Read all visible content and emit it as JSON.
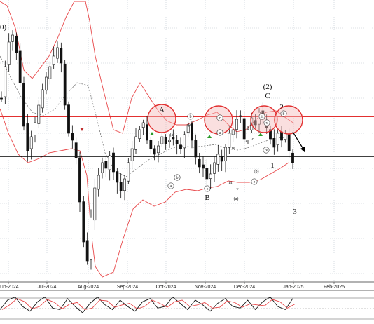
{
  "chart_data": {
    "type": "candlestick",
    "x_ticks": [
      "Jun-2024",
      "Jul-2024",
      "Aug-2024",
      "Sep-2024",
      "Oct-2024",
      "Nov-2024",
      "Dec-2024",
      "Jan-2025",
      "Feb-2025"
    ],
    "colors": {
      "bollinger": "#e8484a",
      "resistance": "#e23030",
      "support": "#000000",
      "circle_fill": "#f4b8b8",
      "circle_stroke": "#e23030",
      "candle": "#111111",
      "buy_arrow": "#2a9a2a",
      "sell_arrow": "#c03030",
      "osc_main": "#111111",
      "osc_signal": "#e8484a"
    },
    "horizontal_lines": [
      {
        "name": "resistance",
        "color": "#e23030"
      },
      {
        "name": "support",
        "color": "#000000"
      }
    ],
    "wave_labels": {
      "major": [
        "A",
        "B",
        "C",
        "(2)",
        "2",
        "1",
        "3"
      ],
      "minor_circled": [
        "b",
        "c",
        "a",
        "b",
        "c",
        "a",
        "e",
        "iii",
        "iv",
        "v",
        "b"
      ],
      "minor_plain": [
        "(a)",
        "(c)",
        "a",
        "c",
        "iv",
        "v",
        "(a)",
        "iii",
        "(b)"
      ]
    },
    "price_path": [
      140,
      95,
      60,
      50,
      75,
      118,
      180,
      215,
      195,
      175,
      150,
      128,
      110,
      95,
      80,
      68,
      90,
      150,
      190,
      200,
      225,
      288,
      345,
      372,
      310,
      268,
      250,
      232,
      240,
      222,
      245,
      260,
      272,
      255,
      232,
      212,
      195,
      185,
      175,
      200,
      212,
      220,
      208,
      195,
      205,
      200,
      198,
      205,
      212,
      192,
      178,
      200,
      224,
      238,
      240,
      255,
      248,
      232,
      220,
      230,
      210,
      190,
      185,
      170,
      165,
      198,
      185,
      168,
      178,
      160,
      170,
      182,
      198,
      210,
      190,
      200,
      190,
      215,
      232
    ],
    "oscillator_path": [
      30,
      60,
      70,
      40,
      25,
      55,
      70,
      35,
      30,
      65,
      40,
      20,
      50,
      70,
      45,
      30,
      60,
      40,
      25,
      55,
      65,
      35,
      40,
      70,
      50,
      30,
      60,
      45,
      25,
      50,
      65,
      40,
      35,
      60,
      30,
      55,
      70,
      40,
      30,
      65
    ]
  }
}
